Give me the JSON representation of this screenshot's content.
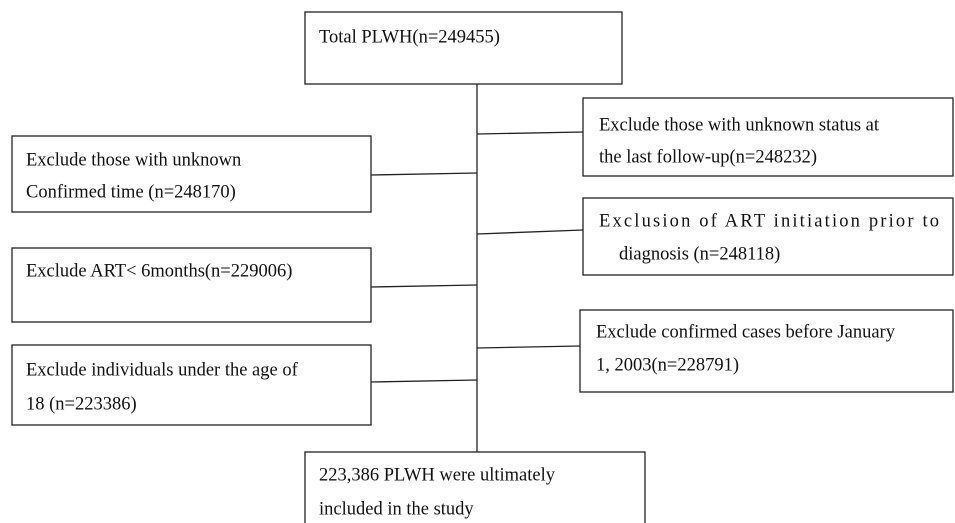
{
  "nodes": [
    {
      "lines": [
        "Total PLWH(n=249455)"
      ]
    },
    {
      "lines": [
        "Exclude those with unknown status at",
        "the last follow-up(n=248232)"
      ]
    },
    {
      "lines": [
        "Exclude those with unknown",
        "Confirmed time (n=248170)"
      ]
    },
    {
      "lines": [
        "Exclusion of ART initiation prior to",
        "diagnosis (n=248118)"
      ]
    },
    {
      "lines": [
        "Exclude ART< 6months(n=229006)"
      ]
    },
    {
      "lines": [
        "Exclude confirmed cases before January",
        "1, 2003(n=228791)"
      ]
    },
    {
      "lines": [
        "Exclude individuals under the age of",
        "18 (n=223386)"
      ]
    },
    {
      "lines": [
        "223,386 PLWH were ultimately",
        "included in the study"
      ]
    }
  ]
}
